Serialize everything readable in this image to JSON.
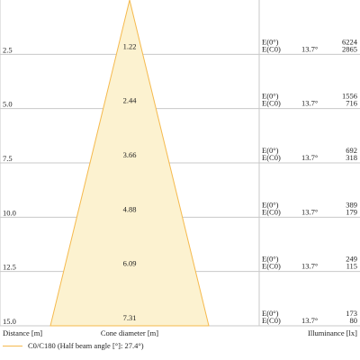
{
  "chart_data": {
    "type": "area",
    "title": "",
    "xlabel": "Cone diameter [m]",
    "ylabel": "Distance [m]",
    "illuminance_label": "Illuminance [lx]",
    "legend": {
      "label": "C0/C180 (Half beam angle [°]: 27.4°)",
      "color": "#f5b94c",
      "placement": "bottom-left"
    },
    "half_beam_angle_label": "13.7°",
    "e_labels": [
      "E(0°)",
      "E(C0)"
    ],
    "ylim": [
      0,
      15
    ],
    "rows": [
      {
        "distance": "2.5",
        "diameter": 1.22,
        "diameter_label": "1.22",
        "e0": "6224",
        "ec0": "2865"
      },
      {
        "distance": "5.0",
        "diameter": 2.44,
        "diameter_label": "2.44",
        "e0": "1556",
        "ec0": "716"
      },
      {
        "distance": "7.5",
        "diameter": 3.66,
        "diameter_label": "3.66",
        "e0": "692",
        "ec0": "318"
      },
      {
        "distance": "10.0",
        "diameter": 4.88,
        "diameter_label": "4.88",
        "e0": "389",
        "ec0": "179"
      },
      {
        "distance": "12.5",
        "diameter": 6.09,
        "diameter_label": "6.09",
        "e0": "249",
        "ec0": "115"
      },
      {
        "distance": "15.0",
        "diameter": 7.31,
        "diameter_label": "7.31",
        "e0": "173",
        "ec0": "80"
      }
    ],
    "colors": {
      "fill": "#fcf2d0",
      "stroke": "#f5b94c",
      "grid": "#c8c8c8"
    }
  }
}
